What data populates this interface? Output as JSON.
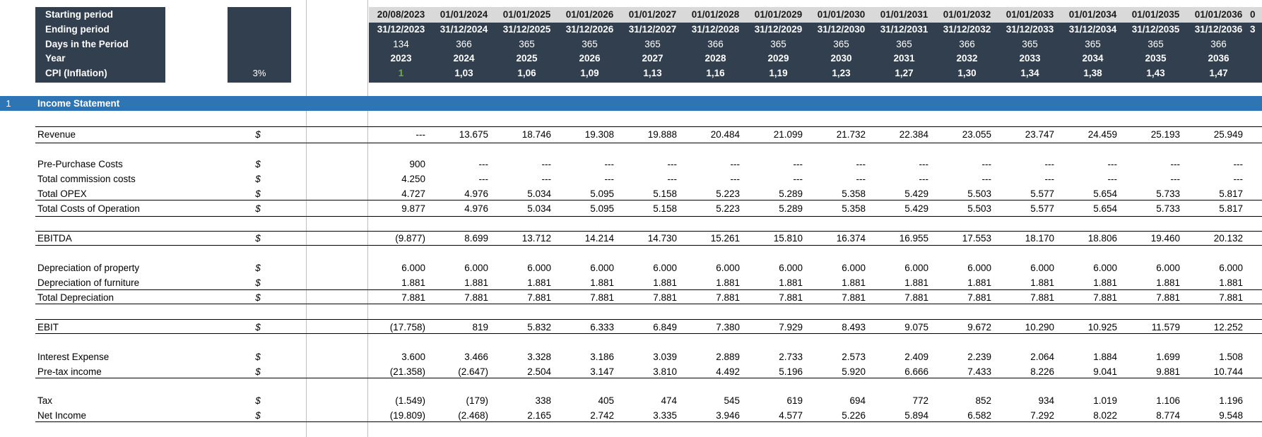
{
  "settings": {
    "labels": [
      "Starting period",
      "Ending period",
      "Days in the Period",
      "Year",
      "CPI (Inflation)"
    ],
    "cpi_value": "3%"
  },
  "timeline": {
    "starting": [
      "20/08/2023",
      "01/01/2024",
      "01/01/2025",
      "01/01/2026",
      "01/01/2027",
      "01/01/2028",
      "01/01/2029",
      "01/01/2030",
      "01/01/2031",
      "01/01/2032",
      "01/01/2033",
      "01/01/2034",
      "01/01/2035",
      "01/01/2036"
    ],
    "ending": [
      "31/12/2023",
      "31/12/2024",
      "31/12/2025",
      "31/12/2026",
      "31/12/2027",
      "31/12/2028",
      "31/12/2029",
      "31/12/2030",
      "31/12/2031",
      "31/12/2032",
      "31/12/2033",
      "31/12/2034",
      "31/12/2035",
      "31/12/2036"
    ],
    "days": [
      "134",
      "366",
      "365",
      "365",
      "365",
      "366",
      "365",
      "365",
      "365",
      "366",
      "365",
      "365",
      "365",
      "366"
    ],
    "year": [
      "2023",
      "2024",
      "2025",
      "2026",
      "2027",
      "2028",
      "2029",
      "2030",
      "2031",
      "2032",
      "2033",
      "2034",
      "2035",
      "2036"
    ],
    "cpi": [
      "1",
      "1,03",
      "1,06",
      "1,09",
      "1,13",
      "1,16",
      "1,19",
      "1,23",
      "1,27",
      "1,30",
      "1,34",
      "1,38",
      "1,43",
      "1,47"
    ],
    "next_start_partial": "0",
    "next_end_partial": "3"
  },
  "section": {
    "number": "1",
    "title": "Income Statement"
  },
  "currency_symbol": "$",
  "rows": [
    {
      "label": "Revenue",
      "values": [
        "---",
        "13.675",
        "18.746",
        "19.308",
        "19.888",
        "20.484",
        "21.099",
        "21.732",
        "22.384",
        "23.055",
        "23.747",
        "24.459",
        "25.193",
        "25.949"
      ]
    },
    {
      "label": "Pre-Purchase Costs",
      "values": [
        "900",
        "---",
        "---",
        "---",
        "---",
        "---",
        "---",
        "---",
        "---",
        "---",
        "---",
        "---",
        "---",
        "---"
      ]
    },
    {
      "label": "Total commission costs",
      "values": [
        "4.250",
        "---",
        "---",
        "---",
        "---",
        "---",
        "---",
        "---",
        "---",
        "---",
        "---",
        "---",
        "---",
        "---"
      ]
    },
    {
      "label": "Total OPEX",
      "values": [
        "4.727",
        "4.976",
        "5.034",
        "5.095",
        "5.158",
        "5.223",
        "5.289",
        "5.358",
        "5.429",
        "5.503",
        "5.577",
        "5.654",
        "5.733",
        "5.817"
      ]
    },
    {
      "label": "Total Costs of Operation",
      "values": [
        "9.877",
        "4.976",
        "5.034",
        "5.095",
        "5.158",
        "5.223",
        "5.289",
        "5.358",
        "5.429",
        "5.503",
        "5.577",
        "5.654",
        "5.733",
        "5.817"
      ]
    },
    {
      "label": "EBITDA",
      "values": [
        "(9.877)",
        "8.699",
        "13.712",
        "14.214",
        "14.730",
        "15.261",
        "15.810",
        "16.374",
        "16.955",
        "17.553",
        "18.170",
        "18.806",
        "19.460",
        "20.132"
      ]
    },
    {
      "label": "Depreciation of property",
      "values": [
        "6.000",
        "6.000",
        "6.000",
        "6.000",
        "6.000",
        "6.000",
        "6.000",
        "6.000",
        "6.000",
        "6.000",
        "6.000",
        "6.000",
        "6.000",
        "6.000"
      ]
    },
    {
      "label": "Depreciation of furniture",
      "values": [
        "1.881",
        "1.881",
        "1.881",
        "1.881",
        "1.881",
        "1.881",
        "1.881",
        "1.881",
        "1.881",
        "1.881",
        "1.881",
        "1.881",
        "1.881",
        "1.881"
      ]
    },
    {
      "label": "Total Depreciation",
      "values": [
        "7.881",
        "7.881",
        "7.881",
        "7.881",
        "7.881",
        "7.881",
        "7.881",
        "7.881",
        "7.881",
        "7.881",
        "7.881",
        "7.881",
        "7.881",
        "7.881"
      ]
    },
    {
      "label": "EBIT",
      "values": [
        "(17.758)",
        "819",
        "5.832",
        "6.333",
        "6.849",
        "7.380",
        "7.929",
        "8.493",
        "9.075",
        "9.672",
        "10.290",
        "10.925",
        "11.579",
        "12.252"
      ]
    },
    {
      "label": "Interest Expense",
      "values": [
        "3.600",
        "3.466",
        "3.328",
        "3.186",
        "3.039",
        "2.889",
        "2.733",
        "2.573",
        "2.409",
        "2.239",
        "2.064",
        "1.884",
        "1.699",
        "1.508"
      ]
    },
    {
      "label": "Pre-tax income",
      "values": [
        "(21.358)",
        "(2.647)",
        "2.504",
        "3.147",
        "3.810",
        "4.492",
        "5.196",
        "5.920",
        "6.666",
        "7.433",
        "8.226",
        "9.041",
        "9.881",
        "10.744"
      ]
    },
    {
      "label": "Tax",
      "values": [
        "(1.549)",
        "(179)",
        "338",
        "405",
        "474",
        "545",
        "619",
        "694",
        "772",
        "852",
        "934",
        "1.019",
        "1.106",
        "1.196"
      ]
    },
    {
      "label": "Net Income",
      "values": [
        "(19.809)",
        "(2.468)",
        "2.165",
        "2.742",
        "3.335",
        "3.946",
        "4.577",
        "5.226",
        "5.894",
        "6.582",
        "7.292",
        "8.022",
        "8.774",
        "9.548"
      ]
    }
  ],
  "colors": {
    "header_dark": "#323f4f",
    "header_light_row": "#d9d9d9",
    "section_bar": "#2e75b6",
    "cpi_first": "#70ad47",
    "gridline": "#bfbfbf"
  }
}
